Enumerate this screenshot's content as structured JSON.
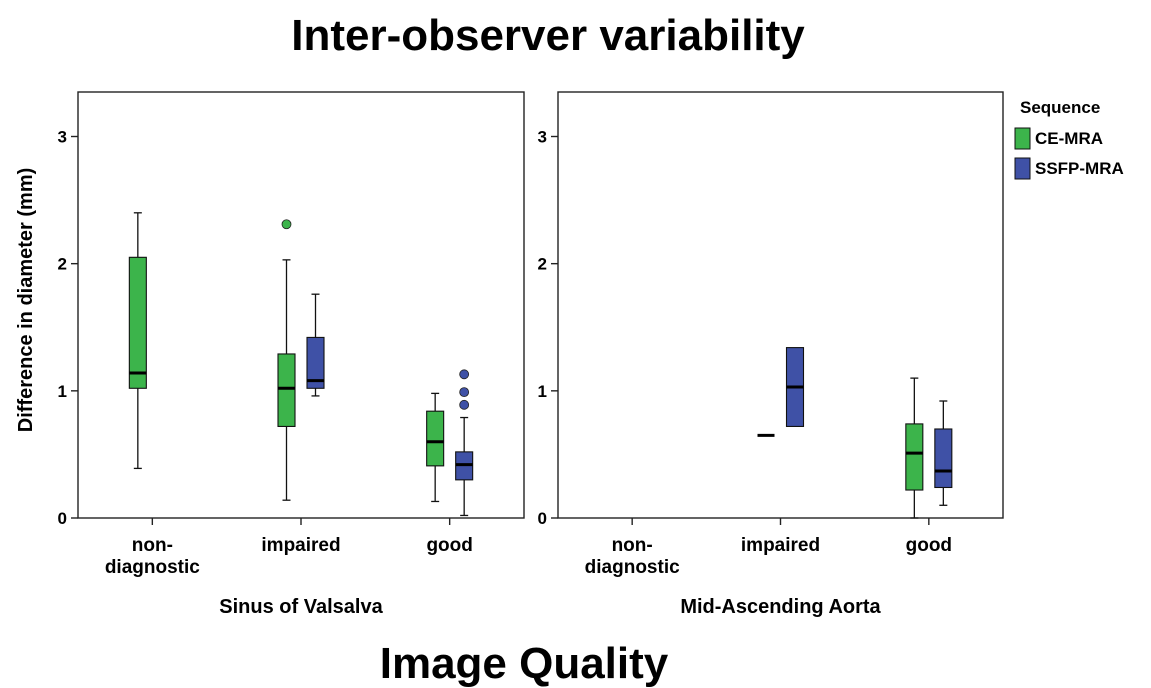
{
  "chart_data": {
    "type": "box",
    "title": "Inter-observer variability",
    "xlabel": "Image Quality",
    "ylabel": "Difference in diameter (mm)",
    "ylim": [
      0,
      3.35
    ],
    "yticks": [
      0,
      1,
      2,
      3
    ],
    "categories": [
      "non-diagnostic",
      "impaired",
      "good"
    ],
    "category_lines": [
      [
        "non-",
        "diagnostic"
      ],
      [
        "impaired"
      ],
      [
        "good"
      ]
    ],
    "grid": false,
    "legend": {
      "title": "Sequence",
      "position": "right",
      "entries": [
        {
          "name": "CE-MRA",
          "color": "#3cb44b"
        },
        {
          "name": "SSFP-MRA",
          "color": "#3f51a6"
        }
      ]
    },
    "panels": [
      {
        "title": "Sinus of Valsalva",
        "boxes": [
          {
            "category": "non-diagnostic",
            "series": "CE-MRA",
            "min": 0.39,
            "q1": 1.02,
            "median": 1.14,
            "q3": 2.05,
            "max": 2.4,
            "outliers": []
          },
          {
            "category": "impaired",
            "series": "CE-MRA",
            "min": 0.14,
            "q1": 0.72,
            "median": 1.02,
            "q3": 1.29,
            "max": 2.03,
            "outliers": [
              2.31
            ]
          },
          {
            "category": "impaired",
            "series": "SSFP-MRA",
            "min": 0.96,
            "q1": 1.02,
            "median": 1.08,
            "q3": 1.42,
            "max": 1.76,
            "outliers": []
          },
          {
            "category": "good",
            "series": "CE-MRA",
            "min": 0.13,
            "q1": 0.41,
            "median": 0.6,
            "q3": 0.84,
            "max": 0.98,
            "outliers": []
          },
          {
            "category": "good",
            "series": "SSFP-MRA",
            "min": 0.02,
            "q1": 0.3,
            "median": 0.42,
            "q3": 0.52,
            "max": 0.79,
            "outliers": [
              0.89,
              0.99,
              1.13
            ]
          }
        ]
      },
      {
        "title": "Mid-Ascending Aorta",
        "boxes": [
          {
            "category": "impaired",
            "series": "CE-MRA",
            "min": 0.65,
            "q1": 0.65,
            "median": 0.65,
            "q3": 0.65,
            "max": 0.65,
            "outliers": []
          },
          {
            "category": "impaired",
            "series": "SSFP-MRA",
            "min": 0.72,
            "q1": 0.72,
            "median": 1.03,
            "q3": 1.34,
            "max": 1.34,
            "outliers": []
          },
          {
            "category": "good",
            "series": "CE-MRA",
            "min": 0.0,
            "q1": 0.22,
            "median": 0.51,
            "q3": 0.74,
            "max": 1.1,
            "outliers": []
          },
          {
            "category": "good",
            "series": "SSFP-MRA",
            "min": 0.1,
            "q1": 0.24,
            "median": 0.37,
            "q3": 0.7,
            "max": 0.92,
            "outliers": []
          }
        ]
      }
    ]
  }
}
